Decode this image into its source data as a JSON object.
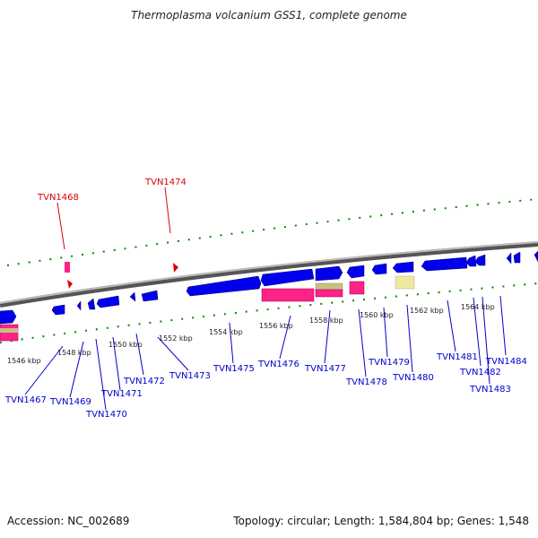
{
  "title": "Thermoplasma volcanium GSS1, complete genome",
  "accession": "Accession: NC_002689",
  "topology": "Topology: circular; Length: 1,584,804 bp; Genes: 1,548",
  "colors": {
    "forward_gene": "#0000ee",
    "rna": "#ff2288",
    "other": "#eee8a0",
    "tick": "#008800",
    "label_blue": "#0000cc",
    "label_red": "#dd0000"
  },
  "kbp_labels": [
    "1546 kbp",
    "1548 kbp",
    "1550 kbp",
    "1552 kbp",
    "1554 kbp",
    "1556 kbp",
    "1558 kbp",
    "1560 kbp",
    "1562 kbp",
    "1564 kbp"
  ],
  "top_gene_labels": [
    "TVN1468",
    "TVN1474"
  ],
  "bottom_gene_labels": [
    "TVN1467",
    "TVN1469",
    "TVN1470",
    "TVN1471",
    "TVN1472",
    "TVN1473",
    "TVN1475",
    "TVN1476",
    "TVN1477",
    "TVN1478",
    "TVN1479",
    "TVN1480",
    "TVN1481",
    "TVN1482",
    "TVN1483",
    "TVN1484"
  ]
}
